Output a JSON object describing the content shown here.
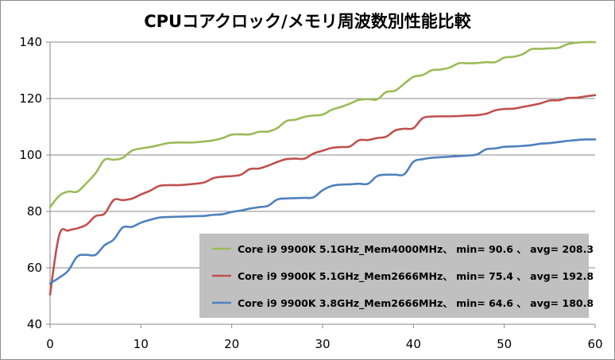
{
  "chart_data": {
    "type": "line",
    "title": "CPUコアクロック/メモリ周波数別性能比較",
    "xlabel": "",
    "ylabel": "",
    "xlim": [
      0,
      60
    ],
    "ylim": [
      40,
      140
    ],
    "x_ticks": [
      "0",
      "10",
      "20",
      "30",
      "40",
      "50",
      "60"
    ],
    "y_ticks": [
      "40",
      "60",
      "80",
      "100",
      "120",
      "140"
    ],
    "grid": "horizontal",
    "legend_position": "bottom-right",
    "series": [
      {
        "name": "Core i9 9900K 5.1GHz_Mem4000MHz、 min= 90.6 、 avg= 208.3",
        "color": "#9bbb59",
        "x": [
          0,
          1,
          2,
          3,
          4,
          5,
          6,
          7,
          8,
          9,
          10,
          11,
          12,
          13,
          14,
          15,
          16,
          17,
          18,
          19,
          20,
          21,
          22,
          23,
          24,
          25,
          26,
          27,
          28,
          29,
          30,
          31,
          32,
          33,
          34,
          35,
          36,
          37,
          38,
          39,
          40,
          41,
          42,
          43,
          44,
          45,
          46,
          47,
          48,
          49,
          50,
          51,
          52,
          53,
          54,
          55,
          56,
          57,
          58,
          59,
          60
        ],
        "y": [
          81.5,
          85.5,
          87,
          87,
          90,
          93.5,
          98.3,
          98.3,
          99,
          101.5,
          102.3,
          102.8,
          103.5,
          104.2,
          104.4,
          104.4,
          104.5,
          104.8,
          105.2,
          106,
          107.2,
          107.3,
          107.3,
          108.2,
          108.3,
          109.5,
          112,
          112.5,
          113.5,
          114,
          114.3,
          116,
          117,
          118.2,
          119.5,
          119.8,
          119.7,
          122.3,
          122.8,
          125.3,
          127.7,
          128.3,
          130,
          130.3,
          131,
          132.5,
          132.5,
          132.6,
          132.9,
          132.9,
          134.5,
          134.8,
          135.7,
          137.5,
          137.6,
          137.8,
          138,
          139.3,
          139.8,
          140,
          140
        ]
      },
      {
        "name": "Core i9 9900K 5.1GHz_Mem2666MHz、 min= 75.4 、 avg= 192.8",
        "color": "#c0504d",
        "x": [
          0,
          1,
          2,
          3,
          4,
          5,
          6,
          7,
          8,
          9,
          10,
          11,
          12,
          13,
          14,
          15,
          16,
          17,
          18,
          19,
          20,
          21,
          22,
          23,
          24,
          25,
          26,
          27,
          28,
          29,
          30,
          31,
          32,
          33,
          34,
          35,
          36,
          37,
          38,
          39,
          40,
          41,
          42,
          43,
          44,
          45,
          46,
          47,
          48,
          49,
          50,
          51,
          52,
          53,
          54,
          55,
          56,
          57,
          58,
          59,
          60
        ],
        "y": [
          50.5,
          71.5,
          73.2,
          74,
          75.3,
          78.3,
          79.2,
          84,
          84,
          84.5,
          86,
          87.3,
          89,
          89.3,
          89.3,
          89.5,
          89.8,
          90.3,
          91.8,
          92.3,
          92.5,
          93,
          95,
          95.2,
          96.2,
          97.5,
          98.5,
          98.7,
          98.7,
          100.5,
          101.5,
          102.5,
          102.8,
          103,
          105.2,
          105.3,
          106,
          106.5,
          108.7,
          109.3,
          109.5,
          113,
          113.6,
          113.7,
          113.7,
          113.8,
          114,
          114.1,
          114.6,
          115.8,
          116.3,
          116.4,
          117,
          117.6,
          118.3,
          119.3,
          119.4,
          120.2,
          120.3,
          120.8,
          121.2
        ]
      },
      {
        "name": "Core i9 9900K 3.8GHz_Mem2666MHz、 min= 64.6 、 avg= 180.8",
        "color": "#4f81bd",
        "x": [
          0,
          1,
          2,
          3,
          4,
          5,
          6,
          7,
          8,
          9,
          10,
          11,
          12,
          13,
          14,
          15,
          16,
          17,
          18,
          19,
          20,
          21,
          22,
          23,
          24,
          25,
          26,
          27,
          28,
          29,
          30,
          31,
          32,
          33,
          34,
          35,
          36,
          37,
          38,
          39,
          40,
          41,
          42,
          43,
          44,
          45,
          46,
          47,
          48,
          49,
          50,
          51,
          52,
          53,
          54,
          55,
          56,
          57,
          58,
          59,
          60
        ],
        "y": [
          54.5,
          56.5,
          59,
          64,
          64.6,
          64.6,
          68,
          70,
          74.3,
          74.5,
          76,
          77,
          77.8,
          78,
          78.1,
          78.2,
          78.3,
          78.4,
          78.8,
          79,
          79.8,
          80.3,
          81,
          81.5,
          82,
          84.2,
          84.6,
          84.7,
          84.8,
          85,
          87.5,
          89,
          89.5,
          89.6,
          89.8,
          89.8,
          92.5,
          93,
          93,
          93.2,
          97.6,
          98.5,
          99,
          99.2,
          99.4,
          99.6,
          99.8,
          100.2,
          102,
          102.3,
          102.9,
          103,
          103.2,
          103.5,
          104,
          104.2,
          104.6,
          105,
          105.3,
          105.5,
          105.5
        ]
      }
    ]
  }
}
